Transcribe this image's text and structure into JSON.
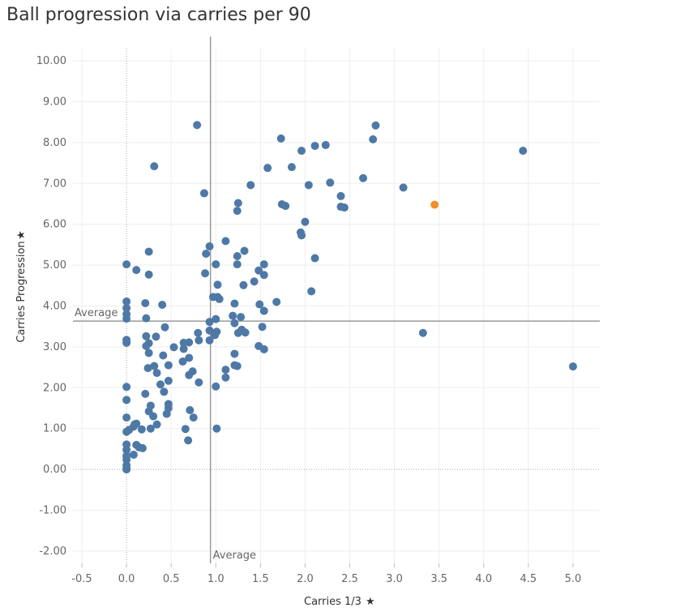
{
  "chart_data": {
    "type": "scatter",
    "title": "Ball progression via carries per 90",
    "xlabel": "Carries 1/3",
    "ylabel": "Carries Progression",
    "axis_pin_icon": "pin-icon",
    "xlim": [
      -0.6,
      5.3
    ],
    "ylim": [
      -2.3,
      10.3
    ],
    "x_ticks": [
      "-0.5",
      "0.0",
      "0.5",
      "1.0",
      "1.5",
      "2.0",
      "2.5",
      "3.0",
      "3.5",
      "4.0",
      "4.5",
      "5.0"
    ],
    "y_ticks": [
      "10.00",
      "9.00",
      "8.00",
      "7.00",
      "6.00",
      "5.00",
      "4.00",
      "3.00",
      "2.00",
      "1.00",
      "0.00",
      "-1.00",
      "-2.00"
    ],
    "x_tick_values": [
      -0.5,
      0,
      0.5,
      1,
      1.5,
      2,
      2.5,
      3,
      3.5,
      4,
      4.5,
      5
    ],
    "y_tick_values": [
      10,
      9,
      8,
      7,
      6,
      5,
      4,
      3,
      2,
      1,
      0,
      -1,
      -2
    ],
    "grid": true,
    "colors": {
      "default": "#4e79a7",
      "highlight": "#f28e2b",
      "reference": "#9a9a9a"
    },
    "reference_lines": {
      "x_average": {
        "value": 0.94,
        "label": "Average"
      },
      "y_average": {
        "value": 3.63,
        "label": "Average"
      }
    },
    "highlight": {
      "x": 3.45,
      "y": 6.48
    },
    "points": [
      [
        0.79,
        8.43
      ],
      [
        0.31,
        7.42
      ],
      [
        0.87,
        6.76
      ],
      [
        0.93,
        5.46
      ],
      [
        0.89,
        5.28
      ],
      [
        0.25,
        5.33
      ],
      [
        0.0,
        5.02
      ],
      [
        0.11,
        4.88
      ],
      [
        0.25,
        4.77
      ],
      [
        0.88,
        4.8
      ],
      [
        1.11,
        5.59
      ],
      [
        1.0,
        5.02
      ],
      [
        1.02,
        4.52
      ],
      [
        1.24,
        5.22
      ],
      [
        1.24,
        5.02
      ],
      [
        1.32,
        5.35
      ],
      [
        1.24,
        6.33
      ],
      [
        1.25,
        6.52
      ],
      [
        1.39,
        6.96
      ],
      [
        1.58,
        7.38
      ],
      [
        1.73,
        8.1
      ],
      [
        1.74,
        6.49
      ],
      [
        1.78,
        6.45
      ],
      [
        1.85,
        7.4
      ],
      [
        1.96,
        7.8
      ],
      [
        2.11,
        7.92
      ],
      [
        2.23,
        7.94
      ],
      [
        2.76,
        8.08
      ],
      [
        2.79,
        8.42
      ],
      [
        4.44,
        7.8
      ],
      [
        2.65,
        7.13
      ],
      [
        3.1,
        6.9
      ],
      [
        2.28,
        7.02
      ],
      [
        2.04,
        6.96
      ],
      [
        2.0,
        6.06
      ],
      [
        1.95,
        5.8
      ],
      [
        1.96,
        5.73
      ],
      [
        2.11,
        5.17
      ],
      [
        2.4,
        6.69
      ],
      [
        2.4,
        6.43
      ],
      [
        2.44,
        6.41
      ],
      [
        2.07,
        4.36
      ],
      [
        1.54,
        5.02
      ],
      [
        1.54,
        4.76
      ],
      [
        1.48,
        4.87
      ],
      [
        1.43,
        4.6
      ],
      [
        1.31,
        4.51
      ],
      [
        1.68,
        4.1
      ],
      [
        1.49,
        4.04
      ],
      [
        1.54,
        3.88
      ],
      [
        1.52,
        3.49
      ],
      [
        1.48,
        3.02
      ],
      [
        1.54,
        2.94
      ],
      [
        1.28,
        3.73
      ],
      [
        1.29,
        3.42
      ],
      [
        1.25,
        3.34
      ],
      [
        1.33,
        3.35
      ],
      [
        1.21,
        3.58
      ],
      [
        1.21,
        4.06
      ],
      [
        1.19,
        3.76
      ],
      [
        1.21,
        2.83
      ],
      [
        1.21,
        2.55
      ],
      [
        1.24,
        2.53
      ],
      [
        1.11,
        2.44
      ],
      [
        1.11,
        2.25
      ],
      [
        1.0,
        2.03
      ],
      [
        1.01,
        1.0
      ],
      [
        1.0,
        3.68
      ],
      [
        0.99,
        3.29
      ],
      [
        1.01,
        3.37
      ],
      [
        1.02,
        4.22
      ],
      [
        1.04,
        4.17
      ],
      [
        0.97,
        4.22
      ],
      [
        0.93,
        3.61
      ],
      [
        0.93,
        3.4
      ],
      [
        0.93,
        3.16
      ],
      [
        0.8,
        3.34
      ],
      [
        0.81,
        3.16
      ],
      [
        0.7,
        3.11
      ],
      [
        0.64,
        2.95
      ],
      [
        0.64,
        3.1
      ],
      [
        0.7,
        2.73
      ],
      [
        0.63,
        2.64
      ],
      [
        0.74,
        2.4
      ],
      [
        0.7,
        2.31
      ],
      [
        0.81,
        2.13
      ],
      [
        0.53,
        2.99
      ],
      [
        0.47,
        2.55
      ],
      [
        0.47,
        2.17
      ],
      [
        0.38,
        2.08
      ],
      [
        0.42,
        1.9
      ],
      [
        0.47,
        1.6
      ],
      [
        0.47,
        1.5
      ],
      [
        0.45,
        1.36
      ],
      [
        0.71,
        1.45
      ],
      [
        0.75,
        1.27
      ],
      [
        0.66,
        0.99
      ],
      [
        0.69,
        0.71
      ],
      [
        0.34,
        2.36
      ],
      [
        0.31,
        2.53
      ],
      [
        0.21,
        1.85
      ],
      [
        0.41,
        2.79
      ],
      [
        0.43,
        3.48
      ],
      [
        0.4,
        4.03
      ],
      [
        0.25,
        3.09
      ],
      [
        0.33,
        3.25
      ],
      [
        0.25,
        2.85
      ],
      [
        0.22,
        3.26
      ],
      [
        0.22,
        3.02
      ],
      [
        0.21,
        4.07
      ],
      [
        0.22,
        3.7
      ],
      [
        0.24,
        2.48
      ],
      [
        0.27,
        1.56
      ],
      [
        0.25,
        1.42
      ],
      [
        0.3,
        1.3
      ],
      [
        0.34,
        1.1
      ],
      [
        0.27,
        1.0
      ],
      [
        0.17,
        0.98
      ],
      [
        0.11,
        1.12
      ],
      [
        0.09,
        1.1
      ],
      [
        0.08,
        1.05
      ],
      [
        0.03,
        0.97
      ],
      [
        0.0,
        0.92
      ],
      [
        0.0,
        1.27
      ],
      [
        0.0,
        1.7
      ],
      [
        0.0,
        2.02
      ],
      [
        0.0,
        3.1
      ],
      [
        0.0,
        3.17
      ],
      [
        0.0,
        3.69
      ],
      [
        0.0,
        3.8
      ],
      [
        0.0,
        3.95
      ],
      [
        0.0,
        4.11
      ],
      [
        0.0,
        0.61
      ],
      [
        0.0,
        0.48
      ],
      [
        0.0,
        0.33
      ],
      [
        0.0,
        0.24
      ],
      [
        0.0,
        0.1
      ],
      [
        0.0,
        0.02
      ],
      [
        0.0,
        0.0
      ],
      [
        0.08,
        0.36
      ],
      [
        0.14,
        0.54
      ],
      [
        0.18,
        0.52
      ],
      [
        0.11,
        0.6
      ],
      [
        3.32,
        3.34
      ],
      [
        5.0,
        2.52
      ]
    ]
  }
}
